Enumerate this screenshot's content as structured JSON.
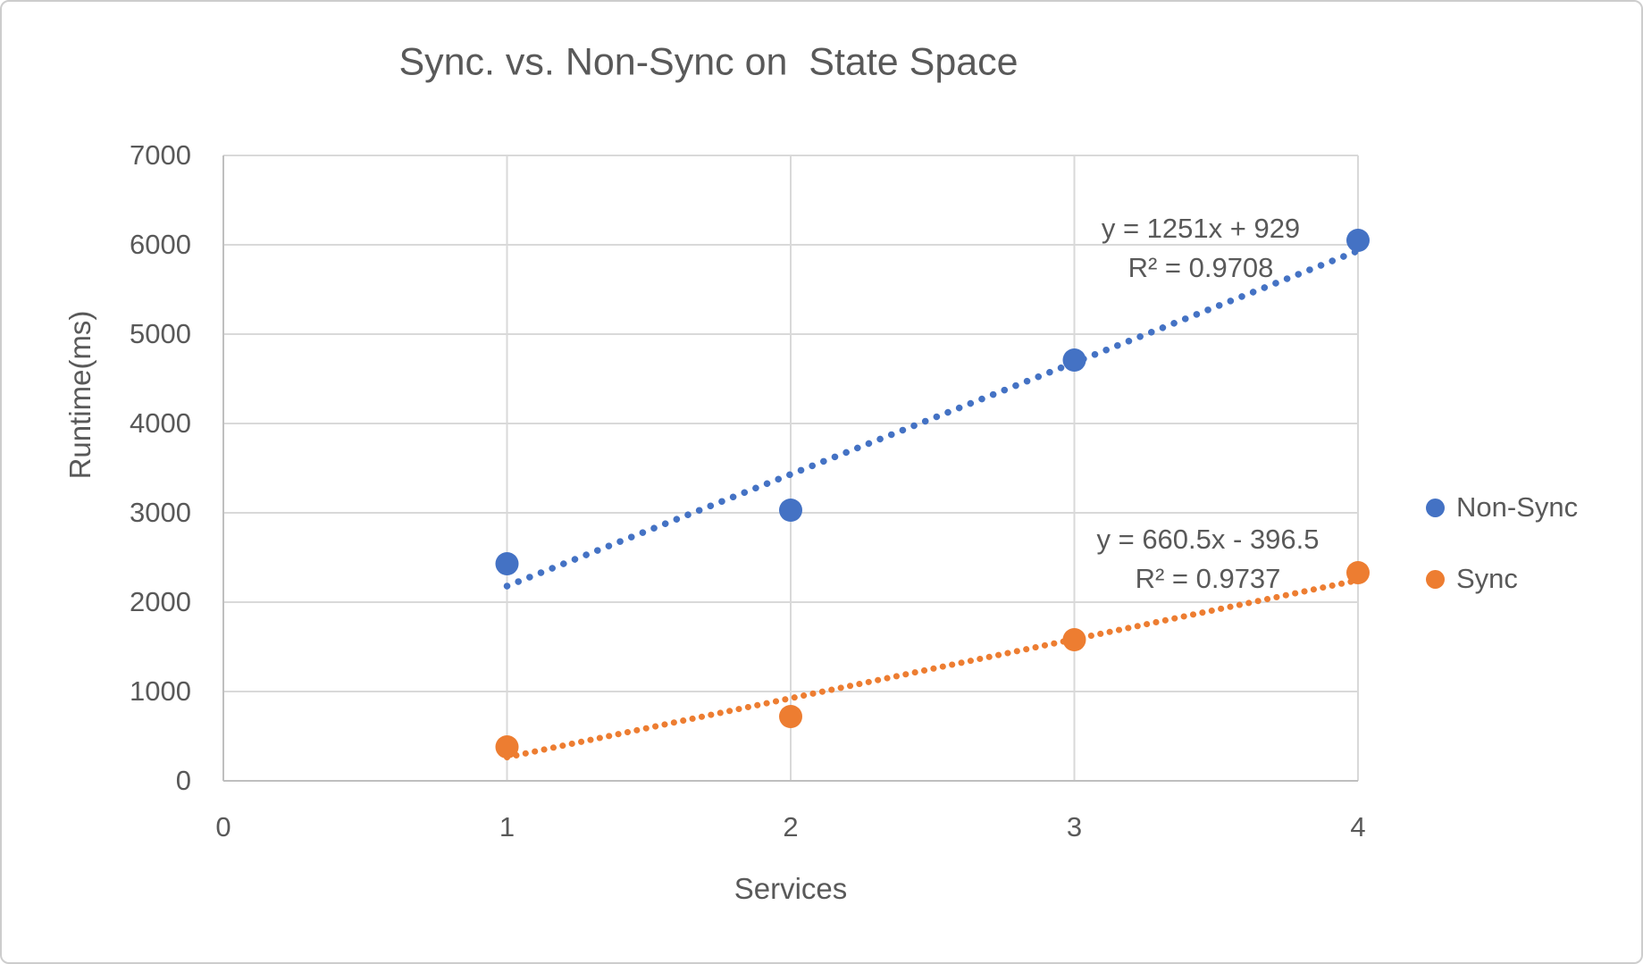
{
  "chart_data": {
    "type": "scatter",
    "title": "Sync. vs. Non-Sync on  State Space",
    "xlabel": "Services",
    "ylabel": "Runtime(ms)",
    "xlim": [
      0,
      4
    ],
    "ylim": [
      0,
      7000
    ],
    "x_ticks": [
      0,
      1,
      2,
      3,
      4
    ],
    "y_ticks": [
      0,
      1000,
      2000,
      3000,
      4000,
      5000,
      6000,
      7000
    ],
    "grid": true,
    "legend_position": "right",
    "x": [
      1,
      2,
      3,
      4
    ],
    "series": [
      {
        "name": "Non-Sync",
        "color": "#4472C4",
        "values": [
          2430,
          3030,
          4710,
          6050
        ],
        "trendline": {
          "type": "linear",
          "slope": 1251,
          "intercept": 929,
          "equation": "y = 1251x + 929",
          "r_squared": "R² = 0.9708"
        }
      },
      {
        "name": "Sync",
        "color": "#ED7D31",
        "values": [
          380,
          720,
          1580,
          2330
        ],
        "trendline": {
          "type": "linear",
          "slope": 660.5,
          "intercept": -396.5,
          "equation": "y = 660.5x - 396.5",
          "r_squared": "R² = 0.9737"
        }
      }
    ]
  },
  "colors": {
    "text": "#595959",
    "gridline": "#D9D9D9",
    "axis": "#BFBFBF",
    "background": "#FFFFFF",
    "non_sync": "#4472C4",
    "sync": "#ED7D31"
  }
}
